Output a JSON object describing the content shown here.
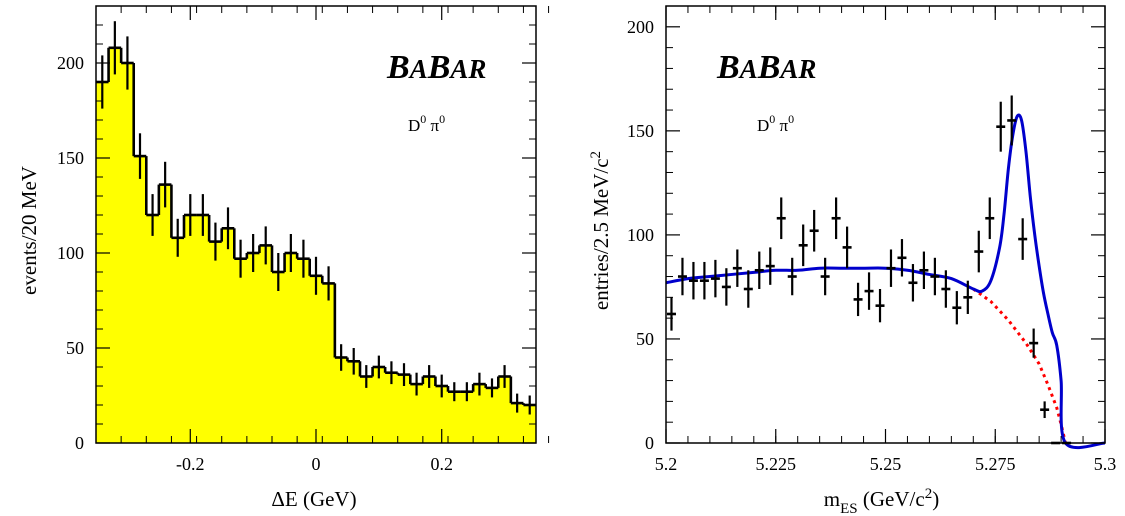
{
  "chart_data": [
    {
      "type": "histogram",
      "xlabel": "ΔE (GeV)",
      "ylabel": "events/20 MeV",
      "xlim": [
        -0.35,
        0.35
      ],
      "ylim": [
        0,
        230
      ],
      "x_ticks": [
        -0.2,
        0,
        0.2
      ],
      "x_tick_labels": [
        "-0.2",
        "0",
        "0.2"
      ],
      "y_ticks": [
        0,
        50,
        100,
        150,
        200
      ],
      "y_tick_labels": [
        "0",
        "50",
        "100",
        "150",
        "200"
      ],
      "watermark": "BABAR",
      "annotation": "D0 π0",
      "fill_color": "#ffff00",
      "bin_width": 0.02,
      "x": [
        -0.34,
        -0.32,
        -0.3,
        -0.28,
        -0.26,
        -0.24,
        -0.22,
        -0.2,
        -0.18,
        -0.16,
        -0.14,
        -0.12,
        -0.1,
        -0.08,
        -0.06,
        -0.04,
        -0.02,
        0.0,
        0.02,
        0.04,
        0.06,
        0.08,
        0.1,
        0.12,
        0.14,
        0.16,
        0.18,
        0.2,
        0.22,
        0.24,
        0.26,
        0.28,
        0.3,
        0.32,
        0.34
      ],
      "values": [
        190,
        208,
        200,
        151,
        120,
        136,
        108,
        120,
        120,
        106,
        113,
        97,
        100,
        104,
        90,
        100,
        97,
        88,
        84,
        45,
        43,
        35,
        40,
        37,
        36,
        31,
        35,
        30,
        27,
        27,
        31,
        29,
        35,
        21,
        20
      ],
      "errors": [
        14,
        14,
        14,
        12,
        11,
        12,
        10,
        11,
        11,
        10,
        11,
        10,
        10,
        10,
        10,
        10,
        10,
        10,
        9,
        7,
        7,
        6,
        6,
        6,
        6,
        6,
        6,
        6,
        5,
        5,
        6,
        5,
        6,
        5,
        5
      ]
    },
    {
      "type": "scatter",
      "xlabel": "mES (GeV/c2)",
      "ylabel": "entries/2.5 MeV/c2",
      "xlim": [
        5.2,
        5.3
      ],
      "ylim": [
        0,
        210
      ],
      "x_ticks": [
        5.2,
        5.225,
        5.25,
        5.275,
        5.3
      ],
      "x_tick_labels": [
        "5.2",
        "5.225",
        "5.25",
        "5.275",
        "5.3"
      ],
      "y_ticks": [
        0,
        50,
        100,
        150,
        200
      ],
      "y_tick_labels": [
        "0",
        "50",
        "100",
        "150",
        "200"
      ],
      "watermark": "BABAR",
      "annotation": "D0 π0",
      "bin_width": 0.0025,
      "x": [
        5.20125,
        5.20375,
        5.20625,
        5.20875,
        5.21125,
        5.21375,
        5.21625,
        5.21875,
        5.22125,
        5.22375,
        5.22625,
        5.22875,
        5.23125,
        5.23375,
        5.23625,
        5.23875,
        5.24125,
        5.24375,
        5.24625,
        5.24875,
        5.25125,
        5.25375,
        5.25625,
        5.25875,
        5.26125,
        5.26375,
        5.26625,
        5.26875,
        5.27125,
        5.27375,
        5.27625,
        5.27875,
        5.28125,
        5.28375,
        5.28625,
        5.28875,
        5.29125
      ],
      "values": [
        62,
        80,
        78,
        78,
        79,
        75,
        84,
        74,
        83,
        85,
        108,
        80,
        95,
        102,
        80,
        108,
        94,
        69,
        73,
        66,
        84,
        89,
        77,
        83,
        80,
        74,
        65,
        70,
        92,
        108,
        152,
        155,
        98,
        48,
        16,
        0,
        0
      ],
      "errors": [
        8,
        9,
        9,
        9,
        9,
        9,
        9,
        9,
        9,
        9,
        10,
        9,
        10,
        10,
        9,
        10,
        10,
        8,
        9,
        8,
        9,
        9,
        9,
        9,
        9,
        9,
        8,
        8,
        10,
        10,
        12,
        12,
        10,
        7,
        4,
        0,
        0
      ],
      "series": [
        {
          "name": "",
          "style": "solid",
          "color": "#0000cc",
          "x": [
            5.2,
            5.205,
            5.21,
            5.215,
            5.22,
            5.225,
            5.23,
            5.235,
            5.24,
            5.245,
            5.25,
            5.255,
            5.26,
            5.265,
            5.27,
            5.272,
            5.274,
            5.276,
            5.277,
            5.278,
            5.279,
            5.28,
            5.281,
            5.282,
            5.283,
            5.284,
            5.285,
            5.286,
            5.287,
            5.288,
            5.289,
            5.29,
            5.291,
            5.3
          ],
          "values": [
            77,
            79,
            80,
            81,
            82,
            83,
            83,
            84,
            84,
            84,
            84,
            83,
            81,
            79,
            74,
            73,
            78,
            94,
            110,
            132,
            148,
            157,
            155,
            140,
            118,
            100,
            85,
            72,
            62,
            53,
            47,
            30,
            0,
            0
          ]
        },
        {
          "name": "",
          "style": "dotted",
          "color": "#ff0000",
          "x": [
            5.27,
            5.274,
            5.278,
            5.282,
            5.285,
            5.287,
            5.289,
            5.29,
            5.291
          ],
          "values": [
            74,
            68,
            59,
            48,
            38,
            28,
            17,
            9,
            0
          ]
        }
      ]
    }
  ]
}
